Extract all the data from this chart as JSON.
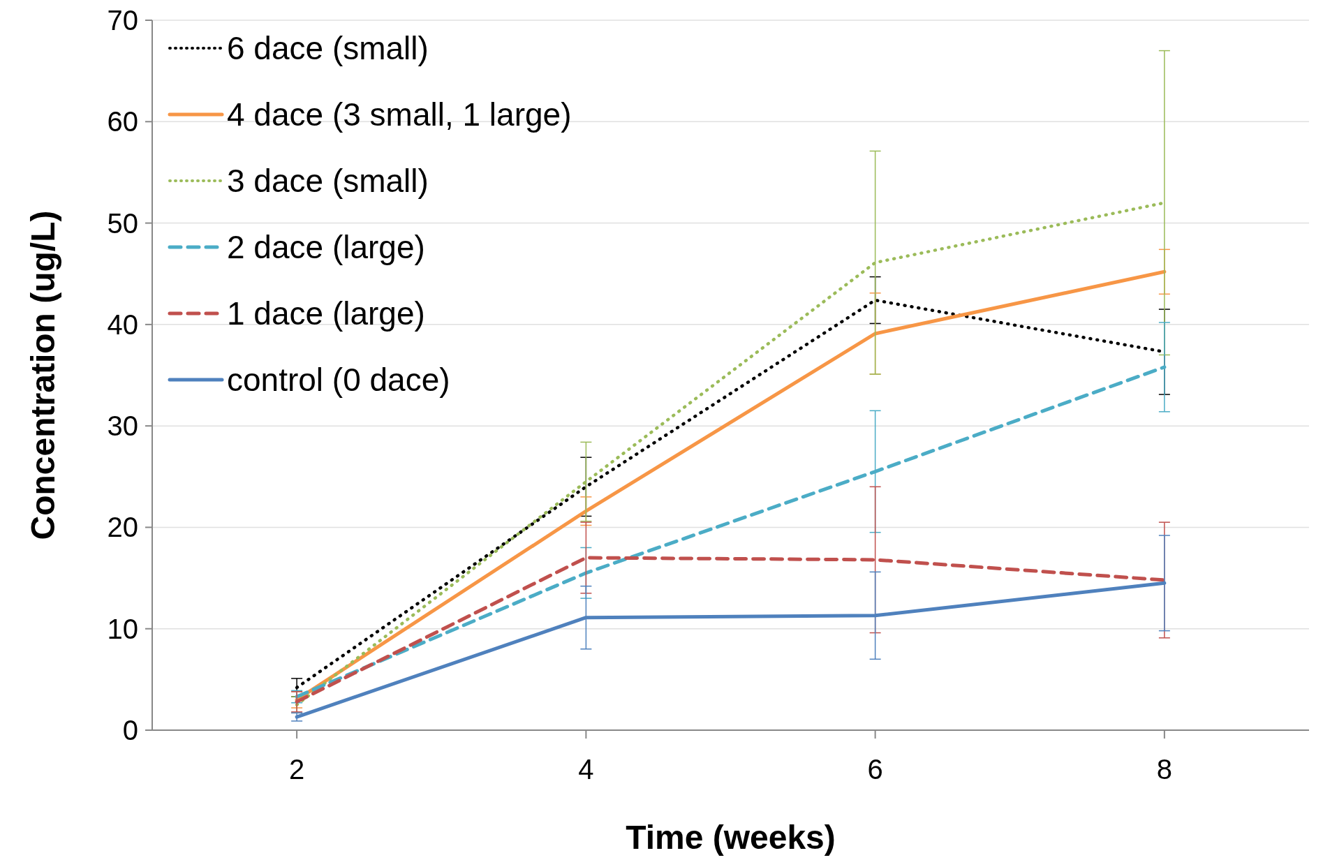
{
  "chart_data": {
    "type": "line",
    "xlabel": "Time (weeks)",
    "ylabel": "Concentration (ug/L)",
    "x": [
      2,
      4,
      6,
      8
    ],
    "xlim": [
      1,
      9
    ],
    "xticks": [
      2,
      4,
      6,
      8
    ],
    "ylim": [
      0,
      70
    ],
    "yticks": [
      0,
      10,
      20,
      30,
      40,
      50,
      60,
      70
    ],
    "grid": "y",
    "legend": "top left",
    "marker": "none",
    "series": [
      {
        "name": "6 dace (small)",
        "color": "#000000",
        "line_style": "dotted",
        "values": [
          4.2,
          24.0,
          42.4,
          37.3
        ],
        "errors": [
          0.9,
          2.9,
          2.3,
          4.2
        ]
      },
      {
        "name": "4 dace (3 small, 1 large)",
        "color": "#f79646",
        "line_style": "solid",
        "values": [
          3.0,
          21.6,
          39.1,
          45.2
        ],
        "errors": [
          0.8,
          1.4,
          4.0,
          2.2
        ]
      },
      {
        "name": "3 dace (small)",
        "color": "#9bbb59",
        "line_style": "dotted",
        "values": [
          2.5,
          24.5,
          46.1,
          52.0
        ],
        "errors": [
          0.8,
          3.9,
          11.0,
          15.0
        ]
      },
      {
        "name": "2 dace (large)",
        "color": "#4bacc6",
        "line_style": "dashed",
        "values": [
          3.3,
          15.5,
          25.5,
          35.8
        ],
        "errors": [
          0.6,
          2.5,
          6.0,
          4.4
        ]
      },
      {
        "name": "1 dace (large)",
        "color": "#c0504d",
        "line_style": "dashed",
        "values": [
          2.8,
          17.0,
          16.8,
          14.8
        ],
        "errors": [
          1.0,
          3.5,
          7.2,
          5.7
        ]
      },
      {
        "name": "control (0 dace)",
        "color": "#4f81bd",
        "line_style": "solid",
        "values": [
          1.3,
          11.1,
          11.3,
          14.5
        ],
        "errors": [
          0.4,
          3.1,
          4.3,
          4.7
        ]
      }
    ]
  }
}
